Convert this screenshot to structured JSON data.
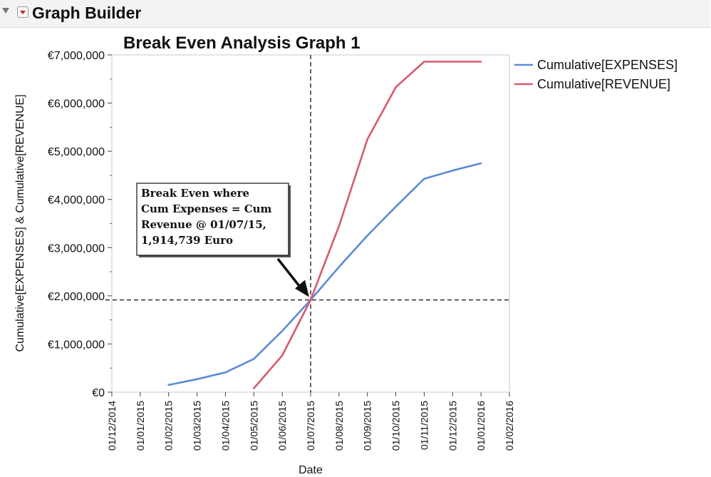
{
  "header": {
    "title": "Graph Builder"
  },
  "chart_data": {
    "type": "line",
    "title": "Break Even Analysis Graph 1",
    "xlabel": "Date",
    "ylabel": "Cumulative[EXPENSES] & Cumulative[REVENUE]",
    "x_ticks": [
      "01/12/2014",
      "01/01/2015",
      "01/02/2015",
      "01/03/2015",
      "01/04/2015",
      "01/05/2015",
      "01/06/2015",
      "01/07/2015",
      "01/08/2015",
      "01/09/2015",
      "01/10/2015",
      "01/11/2015",
      "01/12/2015",
      "01/01/2016",
      "01/02/2016"
    ],
    "y_ticks": [
      "€0",
      "€1,000,000",
      "€2,000,000",
      "€3,000,000",
      "€4,000,000",
      "€5,000,000",
      "€6,000,000",
      "€7,000,000"
    ],
    "ylim": [
      0,
      7000000
    ],
    "legend_position": "right",
    "series": [
      {
        "name": "Cumulative[EXPENSES]",
        "color": "#5b8bd6",
        "x": [
          "01/02/2015",
          "01/03/2015",
          "01/04/2015",
          "01/05/2015",
          "01/06/2015",
          "01/07/2015",
          "01/08/2015",
          "01/09/2015",
          "01/10/2015",
          "01/11/2015",
          "01/12/2015",
          "01/01/2016"
        ],
        "y": [
          150000,
          270000,
          410000,
          690000,
          1270000,
          1914739,
          2600000,
          3250000,
          3850000,
          4430000,
          4600000,
          4750000
        ]
      },
      {
        "name": "Cumulative[REVENUE]",
        "color": "#d65a6e",
        "x": [
          "01/05/2015",
          "01/06/2015",
          "01/07/2015",
          "01/08/2015",
          "01/09/2015",
          "01/10/2015",
          "01/11/2015",
          "01/12/2015",
          "01/01/2016"
        ],
        "y": [
          80000,
          760000,
          1914739,
          3450000,
          5250000,
          6330000,
          6860000,
          6860000,
          6860000
        ]
      }
    ],
    "reference_lines": {
      "x": "01/07/2015",
      "y": 1914739
    },
    "annotation": {
      "lines": [
        "Break Even where",
        "Cum Expenses = Cum",
        "Revenue @ 01/07/15,",
        "1,914,739 Euro"
      ],
      "target": {
        "x": "01/07/2015",
        "y": 1914739
      }
    }
  }
}
